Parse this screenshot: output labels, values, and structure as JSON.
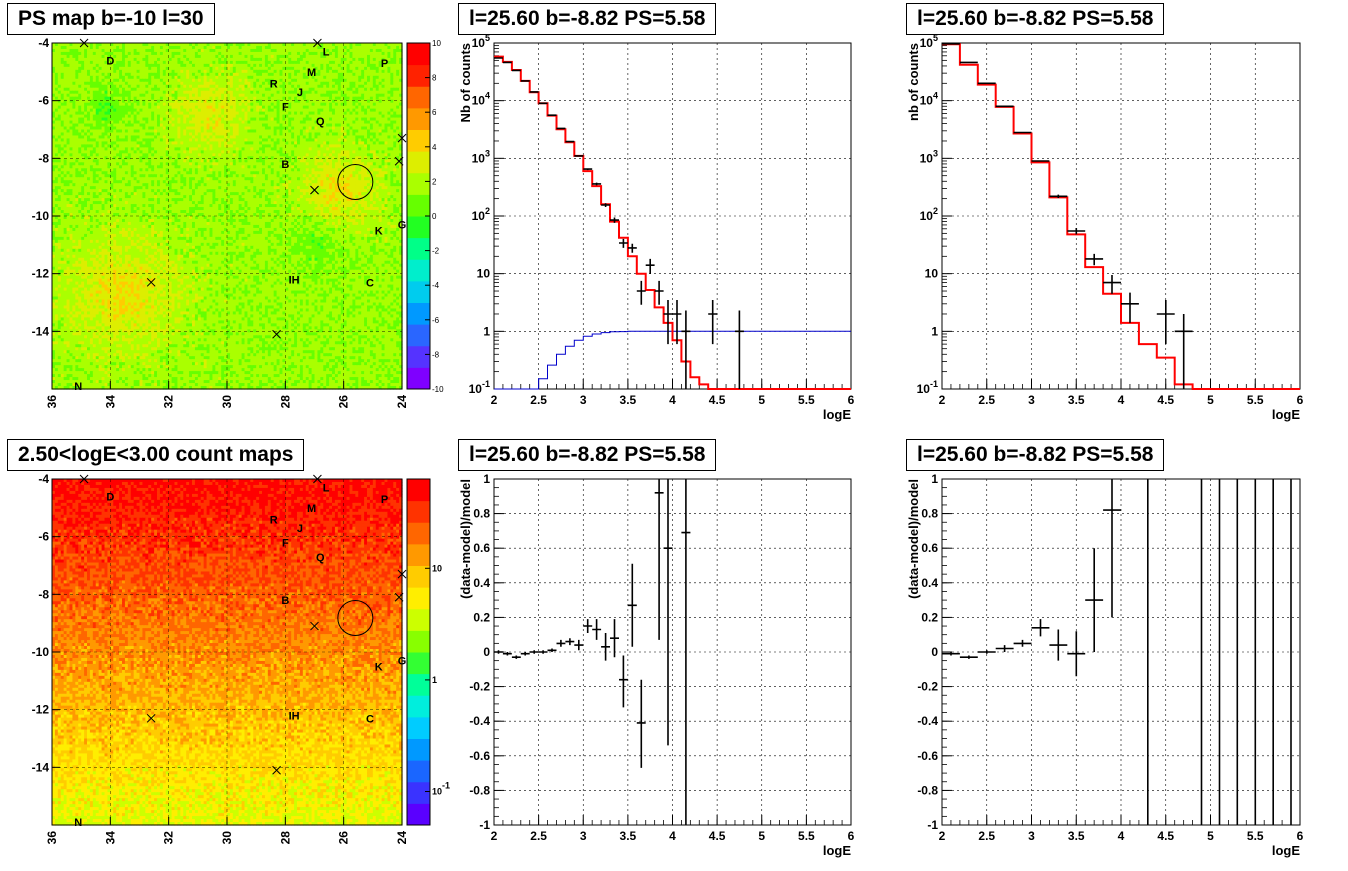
{
  "colors": {
    "model_line": "#ff0000",
    "bkg_line": "#0000cc",
    "data": "#000000",
    "grid": "#000000",
    "colorbar_ps": [
      "#7f00ff",
      "#5533ff",
      "#2a66ff",
      "#0099ff",
      "#00ccee",
      "#00eecc",
      "#00ff88",
      "#22ff22",
      "#66ff00",
      "#aaff00",
      "#ddee00",
      "#ffcc00",
      "#ff9900",
      "#ff6600",
      "#ff2200",
      "#ff0000"
    ],
    "colorbar_counts": [
      "#5a00ff",
      "#3a33ff",
      "#1a66ff",
      "#0099ff",
      "#00ccff",
      "#00eedd",
      "#00ff99",
      "#33ff33",
      "#88ff00",
      "#ccff00",
      "#ffee00",
      "#ffcc00",
      "#ff9900",
      "#ff6600",
      "#ff3300",
      "#ff0000"
    ]
  },
  "chart_data": [
    {
      "type": "heatmap",
      "panel": "ps-map",
      "title": "PS map b=-10 l=30",
      "xlim": [
        36,
        24
      ],
      "ylim": [
        -16,
        -4
      ],
      "x_ticks": [
        "36",
        "34",
        "32",
        "30",
        "28",
        "26",
        "24"
      ],
      "y_ticks": [
        "-4",
        "-6",
        "-8",
        "-10",
        "-12",
        "-14"
      ],
      "colorbar_ticks": [
        "10",
        "8",
        "6",
        "4",
        "2",
        "0",
        "-2",
        "-4",
        "-6",
        "-8",
        "-10"
      ],
      "colorbar_range": [
        -10,
        10
      ],
      "grid": true,
      "sources": [
        {
          "label": "D",
          "x": 34.0,
          "y": -4.6
        },
        {
          "label": "L",
          "x": 26.6,
          "y": -4.3
        },
        {
          "label": "M",
          "x": 27.1,
          "y": -5.0
        },
        {
          "label": "P",
          "x": 24.6,
          "y": -4.7
        },
        {
          "label": "R",
          "x": 28.4,
          "y": -5.4
        },
        {
          "label": "J",
          "x": 27.5,
          "y": -5.7
        },
        {
          "label": "F",
          "x": 28.0,
          "y": -6.2
        },
        {
          "label": "Q",
          "x": 26.8,
          "y": -6.7
        },
        {
          "label": "B",
          "x": 28.0,
          "y": -8.2
        },
        {
          "label": "K",
          "x": 24.8,
          "y": -10.5
        },
        {
          "label": "G",
          "x": 24.0,
          "y": -10.3
        },
        {
          "label": "IH",
          "x": 27.7,
          "y": -12.2
        },
        {
          "label": "C",
          "x": 25.1,
          "y": -12.3
        },
        {
          "label": "N",
          "x": 35.1,
          "y": -15.9
        }
      ],
      "crosses": [
        {
          "x": 34.9,
          "y": -4.0
        },
        {
          "x": 26.9,
          "y": -4.0
        },
        {
          "x": 24.0,
          "y": -7.3
        },
        {
          "x": 24.1,
          "y": -8.1
        },
        {
          "x": 27.0,
          "y": -9.1
        },
        {
          "x": 32.6,
          "y": -12.3
        },
        {
          "x": 28.3,
          "y": -14.1
        },
        {
          "x": 27.0,
          "y": -9.1
        }
      ],
      "circle": {
        "l": 25.6,
        "b": -8.82,
        "radius": 0.5
      }
    },
    {
      "type": "line",
      "panel": "spectrum-1",
      "title": "l=25.60 b=-8.82 PS=5.58",
      "xlabel": "logE",
      "ylabel": "Nb of counts",
      "xlim": [
        2,
        6
      ],
      "ylim": [
        0.1,
        100000
      ],
      "yscale": "log",
      "x_ticks": [
        "2",
        "2.5",
        "3",
        "3.5",
        "4",
        "4.5",
        "5",
        "5.5",
        "6"
      ],
      "y_ticks": [
        "10^-1",
        "1",
        "10",
        "10^2",
        "10^3",
        "10^4",
        "10^5"
      ],
      "grid": true,
      "model_step": {
        "name": "",
        "edges": [
          2.0,
          2.1,
          2.2,
          2.3,
          2.4,
          2.5,
          2.6,
          2.7,
          2.8,
          2.9,
          3.0,
          3.1,
          3.2,
          3.3,
          3.4,
          3.5,
          3.6,
          3.7,
          3.8,
          3.9,
          4.0,
          4.1,
          4.2,
          4.3,
          4.4,
          6.0
        ],
        "values": [
          58000,
          47000,
          34000,
          22000,
          14000,
          9000,
          5500,
          3200,
          1900,
          1100,
          600,
          330,
          160,
          80,
          42,
          20,
          10,
          5.2,
          2.6,
          1.4,
          0.7,
          0.3,
          0.16,
          0.12,
          0.1
        ]
      },
      "background_step": {
        "name": "",
        "edges": [
          2.0,
          2.1,
          2.2,
          2.3,
          2.4,
          2.5,
          2.6,
          2.7,
          2.8,
          2.9,
          3.0,
          3.1,
          3.2,
          3.3,
          3.4,
          3.5,
          6.0
        ],
        "values": [
          0.1,
          0.1,
          0.1,
          0.1,
          0.1,
          0.15,
          0.26,
          0.4,
          0.55,
          0.7,
          0.82,
          0.9,
          0.95,
          0.98,
          0.99,
          1.0
        ]
      },
      "points": [
        {
          "x": 2.05,
          "y": 55000,
          "xerr": 0.05,
          "ylo": 54000,
          "yhi": 56000
        },
        {
          "x": 2.15,
          "y": 46000,
          "xerr": 0.05,
          "ylo": 45000,
          "yhi": 47000
        },
        {
          "x": 2.25,
          "y": 33500,
          "xerr": 0.05,
          "ylo": 33000,
          "yhi": 34000
        },
        {
          "x": 2.35,
          "y": 22000,
          "xerr": 0.05,
          "ylo": 21700,
          "yhi": 22300
        },
        {
          "x": 2.45,
          "y": 14200,
          "xerr": 0.05,
          "ylo": 14000,
          "yhi": 14400
        },
        {
          "x": 2.55,
          "y": 9000,
          "xerr": 0.05,
          "ylo": 8900,
          "yhi": 9100
        },
        {
          "x": 2.65,
          "y": 5600,
          "xerr": 0.05,
          "ylo": 5500,
          "yhi": 5700
        },
        {
          "x": 2.75,
          "y": 3300,
          "xerr": 0.05,
          "ylo": 3250,
          "yhi": 3350
        },
        {
          "x": 2.85,
          "y": 1950,
          "xerr": 0.05,
          "ylo": 1900,
          "yhi": 2000
        },
        {
          "x": 2.95,
          "y": 1100,
          "xerr": 0.05,
          "ylo": 1070,
          "yhi": 1130
        },
        {
          "x": 3.05,
          "y": 650,
          "xerr": 0.05,
          "ylo": 625,
          "yhi": 675
        },
        {
          "x": 3.15,
          "y": 360,
          "xerr": 0.05,
          "ylo": 340,
          "yhi": 380
        },
        {
          "x": 3.25,
          "y": 155,
          "xerr": 0.05,
          "ylo": 143,
          "yhi": 167
        },
        {
          "x": 3.35,
          "y": 85,
          "xerr": 0.05,
          "ylo": 76,
          "yhi": 94
        },
        {
          "x": 3.45,
          "y": 34,
          "xerr": 0.05,
          "ylo": 28,
          "yhi": 40
        },
        {
          "x": 3.55,
          "y": 28,
          "xerr": 0.05,
          "ylo": 23,
          "yhi": 33
        },
        {
          "x": 3.65,
          "y": 5,
          "xerr": 0.05,
          "ylo": 2.9,
          "yhi": 7.5
        },
        {
          "x": 3.75,
          "y": 14,
          "xerr": 0.05,
          "ylo": 10,
          "yhi": 18
        },
        {
          "x": 3.85,
          "y": 5,
          "xerr": 0.05,
          "ylo": 2.9,
          "yhi": 7.5
        },
        {
          "x": 3.95,
          "y": 2,
          "xerr": 0.05,
          "ylo": 0.6,
          "yhi": 3.5
        },
        {
          "x": 4.05,
          "y": 2,
          "xerr": 0.05,
          "ylo": 0.6,
          "yhi": 3.5
        },
        {
          "x": 4.15,
          "y": 1,
          "xerr": 0.05,
          "ylo": 0.1,
          "yhi": 2.3
        },
        {
          "x": 4.45,
          "y": 2,
          "xerr": 0.05,
          "ylo": 0.6,
          "yhi": 3.5
        },
        {
          "x": 4.75,
          "y": 1,
          "xerr": 0.05,
          "ylo": 0.1,
          "yhi": 2.3
        }
      ]
    },
    {
      "type": "line",
      "panel": "spectrum-2",
      "title": "l=25.60 b=-8.82 PS=5.58",
      "xlabel": "logE",
      "ylabel": "nb of counts",
      "xlim": [
        2,
        6
      ],
      "ylim": [
        0.1,
        100000
      ],
      "yscale": "log",
      "x_ticks": [
        "2",
        "2.5",
        "3",
        "3.5",
        "4",
        "4.5",
        "5",
        "5.5",
        "6"
      ],
      "y_ticks": [
        "10^-1",
        "1",
        "10",
        "10^2",
        "10^3",
        "10^4",
        "10^5"
      ],
      "grid": true,
      "model_step": {
        "name": "",
        "edges": [
          2.0,
          2.2,
          2.4,
          2.6,
          2.8,
          3.0,
          3.2,
          3.4,
          3.6,
          3.8,
          4.0,
          4.2,
          4.4,
          4.6,
          4.8,
          6.0
        ],
        "values": [
          95000,
          42000,
          19000,
          7800,
          2700,
          850,
          210,
          48,
          13,
          4.5,
          1.4,
          0.6,
          0.35,
          0.12,
          0.1
        ]
      },
      "points": [
        {
          "x": 2.1,
          "y": 97000,
          "xerr": 0.1,
          "ylo": 96000,
          "yhi": 98000
        },
        {
          "x": 2.3,
          "y": 46000,
          "xerr": 0.1,
          "ylo": 45500,
          "yhi": 46500
        },
        {
          "x": 2.5,
          "y": 20000,
          "xerr": 0.1,
          "ylo": 19800,
          "yhi": 20200
        },
        {
          "x": 2.7,
          "y": 8000,
          "xerr": 0.1,
          "ylo": 7900,
          "yhi": 8100
        },
        {
          "x": 2.9,
          "y": 2800,
          "xerr": 0.1,
          "ylo": 2750,
          "yhi": 2850
        },
        {
          "x": 3.1,
          "y": 900,
          "xerr": 0.1,
          "ylo": 870,
          "yhi": 930
        },
        {
          "x": 3.3,
          "y": 220,
          "xerr": 0.1,
          "ylo": 205,
          "yhi": 235
        },
        {
          "x": 3.5,
          "y": 55,
          "xerr": 0.1,
          "ylo": 48,
          "yhi": 62
        },
        {
          "x": 3.7,
          "y": 18,
          "xerr": 0.1,
          "ylo": 14,
          "yhi": 22
        },
        {
          "x": 3.9,
          "y": 7,
          "xerr": 0.1,
          "ylo": 4.5,
          "yhi": 9.5
        },
        {
          "x": 4.1,
          "y": 3,
          "xerr": 0.1,
          "ylo": 1.4,
          "yhi": 4.7
        },
        {
          "x": 4.5,
          "y": 2,
          "xerr": 0.1,
          "ylo": 0.6,
          "yhi": 3.5
        },
        {
          "x": 4.7,
          "y": 1,
          "xerr": 0.1,
          "ylo": 0.1,
          "yhi": 2.0
        }
      ]
    },
    {
      "type": "heatmap",
      "panel": "count-map",
      "title": "2.50<logE<3.00 count maps",
      "xlim": [
        36,
        24
      ],
      "ylim": [
        -16,
        -4
      ],
      "x_ticks": [
        "36",
        "34",
        "32",
        "30",
        "28",
        "26",
        "24"
      ],
      "y_ticks": [
        "-4",
        "-6",
        "-8",
        "-10",
        "-12",
        "-14"
      ],
      "colorbar_ticks": [
        "10",
        "1",
        "10^-1"
      ],
      "colorbar_range_log": [
        -1.3,
        1.8
      ],
      "grid": true,
      "sources": [
        {
          "label": "D",
          "x": 34.0,
          "y": -4.6
        },
        {
          "label": "L",
          "x": 26.6,
          "y": -4.3
        },
        {
          "label": "M",
          "x": 27.1,
          "y": -5.0
        },
        {
          "label": "P",
          "x": 24.6,
          "y": -4.7
        },
        {
          "label": "R",
          "x": 28.4,
          "y": -5.4
        },
        {
          "label": "J",
          "x": 27.5,
          "y": -5.7
        },
        {
          "label": "F",
          "x": 28.0,
          "y": -6.2
        },
        {
          "label": "Q",
          "x": 26.8,
          "y": -6.7
        },
        {
          "label": "B",
          "x": 28.0,
          "y": -8.2
        },
        {
          "label": "K",
          "x": 24.8,
          "y": -10.5
        },
        {
          "label": "G",
          "x": 24.0,
          "y": -10.3
        },
        {
          "label": "IH",
          "x": 27.7,
          "y": -12.2
        },
        {
          "label": "C",
          "x": 25.1,
          "y": -12.3
        },
        {
          "label": "N",
          "x": 35.1,
          "y": -15.9
        }
      ],
      "crosses": [
        {
          "x": 34.9,
          "y": -4.0
        },
        {
          "x": 26.9,
          "y": -4.0
        },
        {
          "x": 24.0,
          "y": -7.3
        },
        {
          "x": 24.1,
          "y": -8.1
        },
        {
          "x": 27.0,
          "y": -9.1
        },
        {
          "x": 32.6,
          "y": -12.3
        },
        {
          "x": 28.3,
          "y": -14.1
        }
      ],
      "circle": {
        "l": 25.6,
        "b": -8.82,
        "radius": 0.5
      }
    },
    {
      "type": "scatter",
      "panel": "residual-1",
      "title": "l=25.60 b=-8.82 PS=5.58",
      "xlabel": "logE",
      "ylabel": "(data-model)/model",
      "xlim": [
        2,
        6
      ],
      "ylim": [
        -1,
        1
      ],
      "x_ticks": [
        "2",
        "2.5",
        "3",
        "3.5",
        "4",
        "4.5",
        "5",
        "5.5",
        "6"
      ],
      "y_ticks": [
        "-1",
        "-0.8",
        "-0.6",
        "-0.4",
        "-0.2",
        "0",
        "0.2",
        "0.4",
        "0.6",
        "0.8",
        "1"
      ],
      "grid": true,
      "points": [
        {
          "x": 2.05,
          "y": 0.0,
          "xerr": 0.05,
          "ylo": -0.01,
          "yhi": 0.01
        },
        {
          "x": 2.15,
          "y": -0.01,
          "xerr": 0.05,
          "ylo": -0.02,
          "yhi": 0.0
        },
        {
          "x": 2.25,
          "y": -0.03,
          "xerr": 0.05,
          "ylo": -0.04,
          "yhi": -0.02
        },
        {
          "x": 2.35,
          "y": -0.01,
          "xerr": 0.05,
          "ylo": -0.02,
          "yhi": 0.0
        },
        {
          "x": 2.45,
          "y": 0.0,
          "xerr": 0.05,
          "ylo": -0.01,
          "yhi": 0.01
        },
        {
          "x": 2.55,
          "y": 0.0,
          "xerr": 0.05,
          "ylo": -0.01,
          "yhi": 0.01
        },
        {
          "x": 2.65,
          "y": 0.01,
          "xerr": 0.05,
          "ylo": 0.0,
          "yhi": 0.02
        },
        {
          "x": 2.75,
          "y": 0.05,
          "xerr": 0.05,
          "ylo": 0.03,
          "yhi": 0.07
        },
        {
          "x": 2.85,
          "y": 0.06,
          "xerr": 0.05,
          "ylo": 0.04,
          "yhi": 0.08
        },
        {
          "x": 2.95,
          "y": 0.04,
          "xerr": 0.05,
          "ylo": 0.01,
          "yhi": 0.07
        },
        {
          "x": 3.05,
          "y": 0.15,
          "xerr": 0.05,
          "ylo": 0.11,
          "yhi": 0.19
        },
        {
          "x": 3.15,
          "y": 0.13,
          "xerr": 0.05,
          "ylo": 0.07,
          "yhi": 0.19
        },
        {
          "x": 3.25,
          "y": 0.03,
          "xerr": 0.05,
          "ylo": -0.05,
          "yhi": 0.11
        },
        {
          "x": 3.35,
          "y": 0.08,
          "xerr": 0.05,
          "ylo": -0.03,
          "yhi": 0.19
        },
        {
          "x": 3.45,
          "y": -0.16,
          "xerr": 0.05,
          "ylo": -0.32,
          "yhi": -0.02
        },
        {
          "x": 3.55,
          "y": 0.27,
          "xerr": 0.05,
          "ylo": 0.03,
          "yhi": 0.51
        },
        {
          "x": 3.65,
          "y": -0.41,
          "xerr": 0.05,
          "ylo": -0.67,
          "yhi": -0.16
        },
        {
          "x": 3.85,
          "y": 0.92,
          "xerr": 0.05,
          "ylo": 0.07,
          "yhi": 1.0
        },
        {
          "x": 3.95,
          "y": 0.6,
          "xerr": 0.05,
          "ylo": -0.54,
          "yhi": 1.0
        },
        {
          "x": 4.15,
          "y": 0.69,
          "xerr": 0.05,
          "ylo": -1.0,
          "yhi": 1.0
        }
      ]
    },
    {
      "type": "scatter",
      "panel": "residual-2",
      "title": "l=25.60 b=-8.82 PS=5.58",
      "xlabel": "logE",
      "ylabel": "(data-model)/model",
      "xlim": [
        2,
        6
      ],
      "ylim": [
        -1,
        1
      ],
      "x_ticks": [
        "2",
        "2.5",
        "3",
        "3.5",
        "4",
        "4.5",
        "5",
        "5.5",
        "6"
      ],
      "y_ticks": [
        "-1",
        "-0.8",
        "-0.6",
        "-0.4",
        "-0.2",
        "0",
        "0.2",
        "0.4",
        "0.6",
        "0.8",
        "1"
      ],
      "grid": true,
      "points": [
        {
          "x": 2.1,
          "y": -0.01,
          "xerr": 0.1,
          "ylo": -0.02,
          "yhi": 0.0
        },
        {
          "x": 2.3,
          "y": -0.03,
          "xerr": 0.1,
          "ylo": -0.04,
          "yhi": -0.02
        },
        {
          "x": 2.5,
          "y": 0.0,
          "xerr": 0.1,
          "ylo": -0.01,
          "yhi": 0.01
        },
        {
          "x": 2.7,
          "y": 0.02,
          "xerr": 0.1,
          "ylo": 0.0,
          "yhi": 0.04
        },
        {
          "x": 2.9,
          "y": 0.05,
          "xerr": 0.1,
          "ylo": 0.03,
          "yhi": 0.07
        },
        {
          "x": 3.1,
          "y": 0.14,
          "xerr": 0.1,
          "ylo": 0.09,
          "yhi": 0.19
        },
        {
          "x": 3.3,
          "y": 0.04,
          "xerr": 0.1,
          "ylo": -0.05,
          "yhi": 0.13
        },
        {
          "x": 3.5,
          "y": -0.01,
          "xerr": 0.1,
          "ylo": -0.14,
          "yhi": 0.12
        },
        {
          "x": 3.7,
          "y": 0.3,
          "xerr": 0.1,
          "ylo": 0.0,
          "yhi": 0.6
        },
        {
          "x": 3.9,
          "y": 0.82,
          "xerr": 0.1,
          "ylo": 0.2,
          "yhi": 1.0
        },
        {
          "x": 4.3,
          "y": 0.0,
          "xerr": 0,
          "ylo": -1.0,
          "yhi": 1.0
        },
        {
          "x": 4.9,
          "y": 0.0,
          "xerr": 0,
          "ylo": -1.0,
          "yhi": 1.0
        },
        {
          "x": 5.1,
          "y": 0.0,
          "xerr": 0,
          "ylo": -1.0,
          "yhi": 1.0
        },
        {
          "x": 5.3,
          "y": 0.0,
          "xerr": 0,
          "ylo": -1.0,
          "yhi": 1.0
        },
        {
          "x": 5.5,
          "y": 0.0,
          "xerr": 0,
          "ylo": -1.0,
          "yhi": 1.0
        },
        {
          "x": 5.7,
          "y": 0.0,
          "xerr": 0,
          "ylo": -1.0,
          "yhi": 1.0
        },
        {
          "x": 5.9,
          "y": 0.0,
          "xerr": 0,
          "ylo": -1.0,
          "yhi": 1.0
        }
      ]
    }
  ]
}
